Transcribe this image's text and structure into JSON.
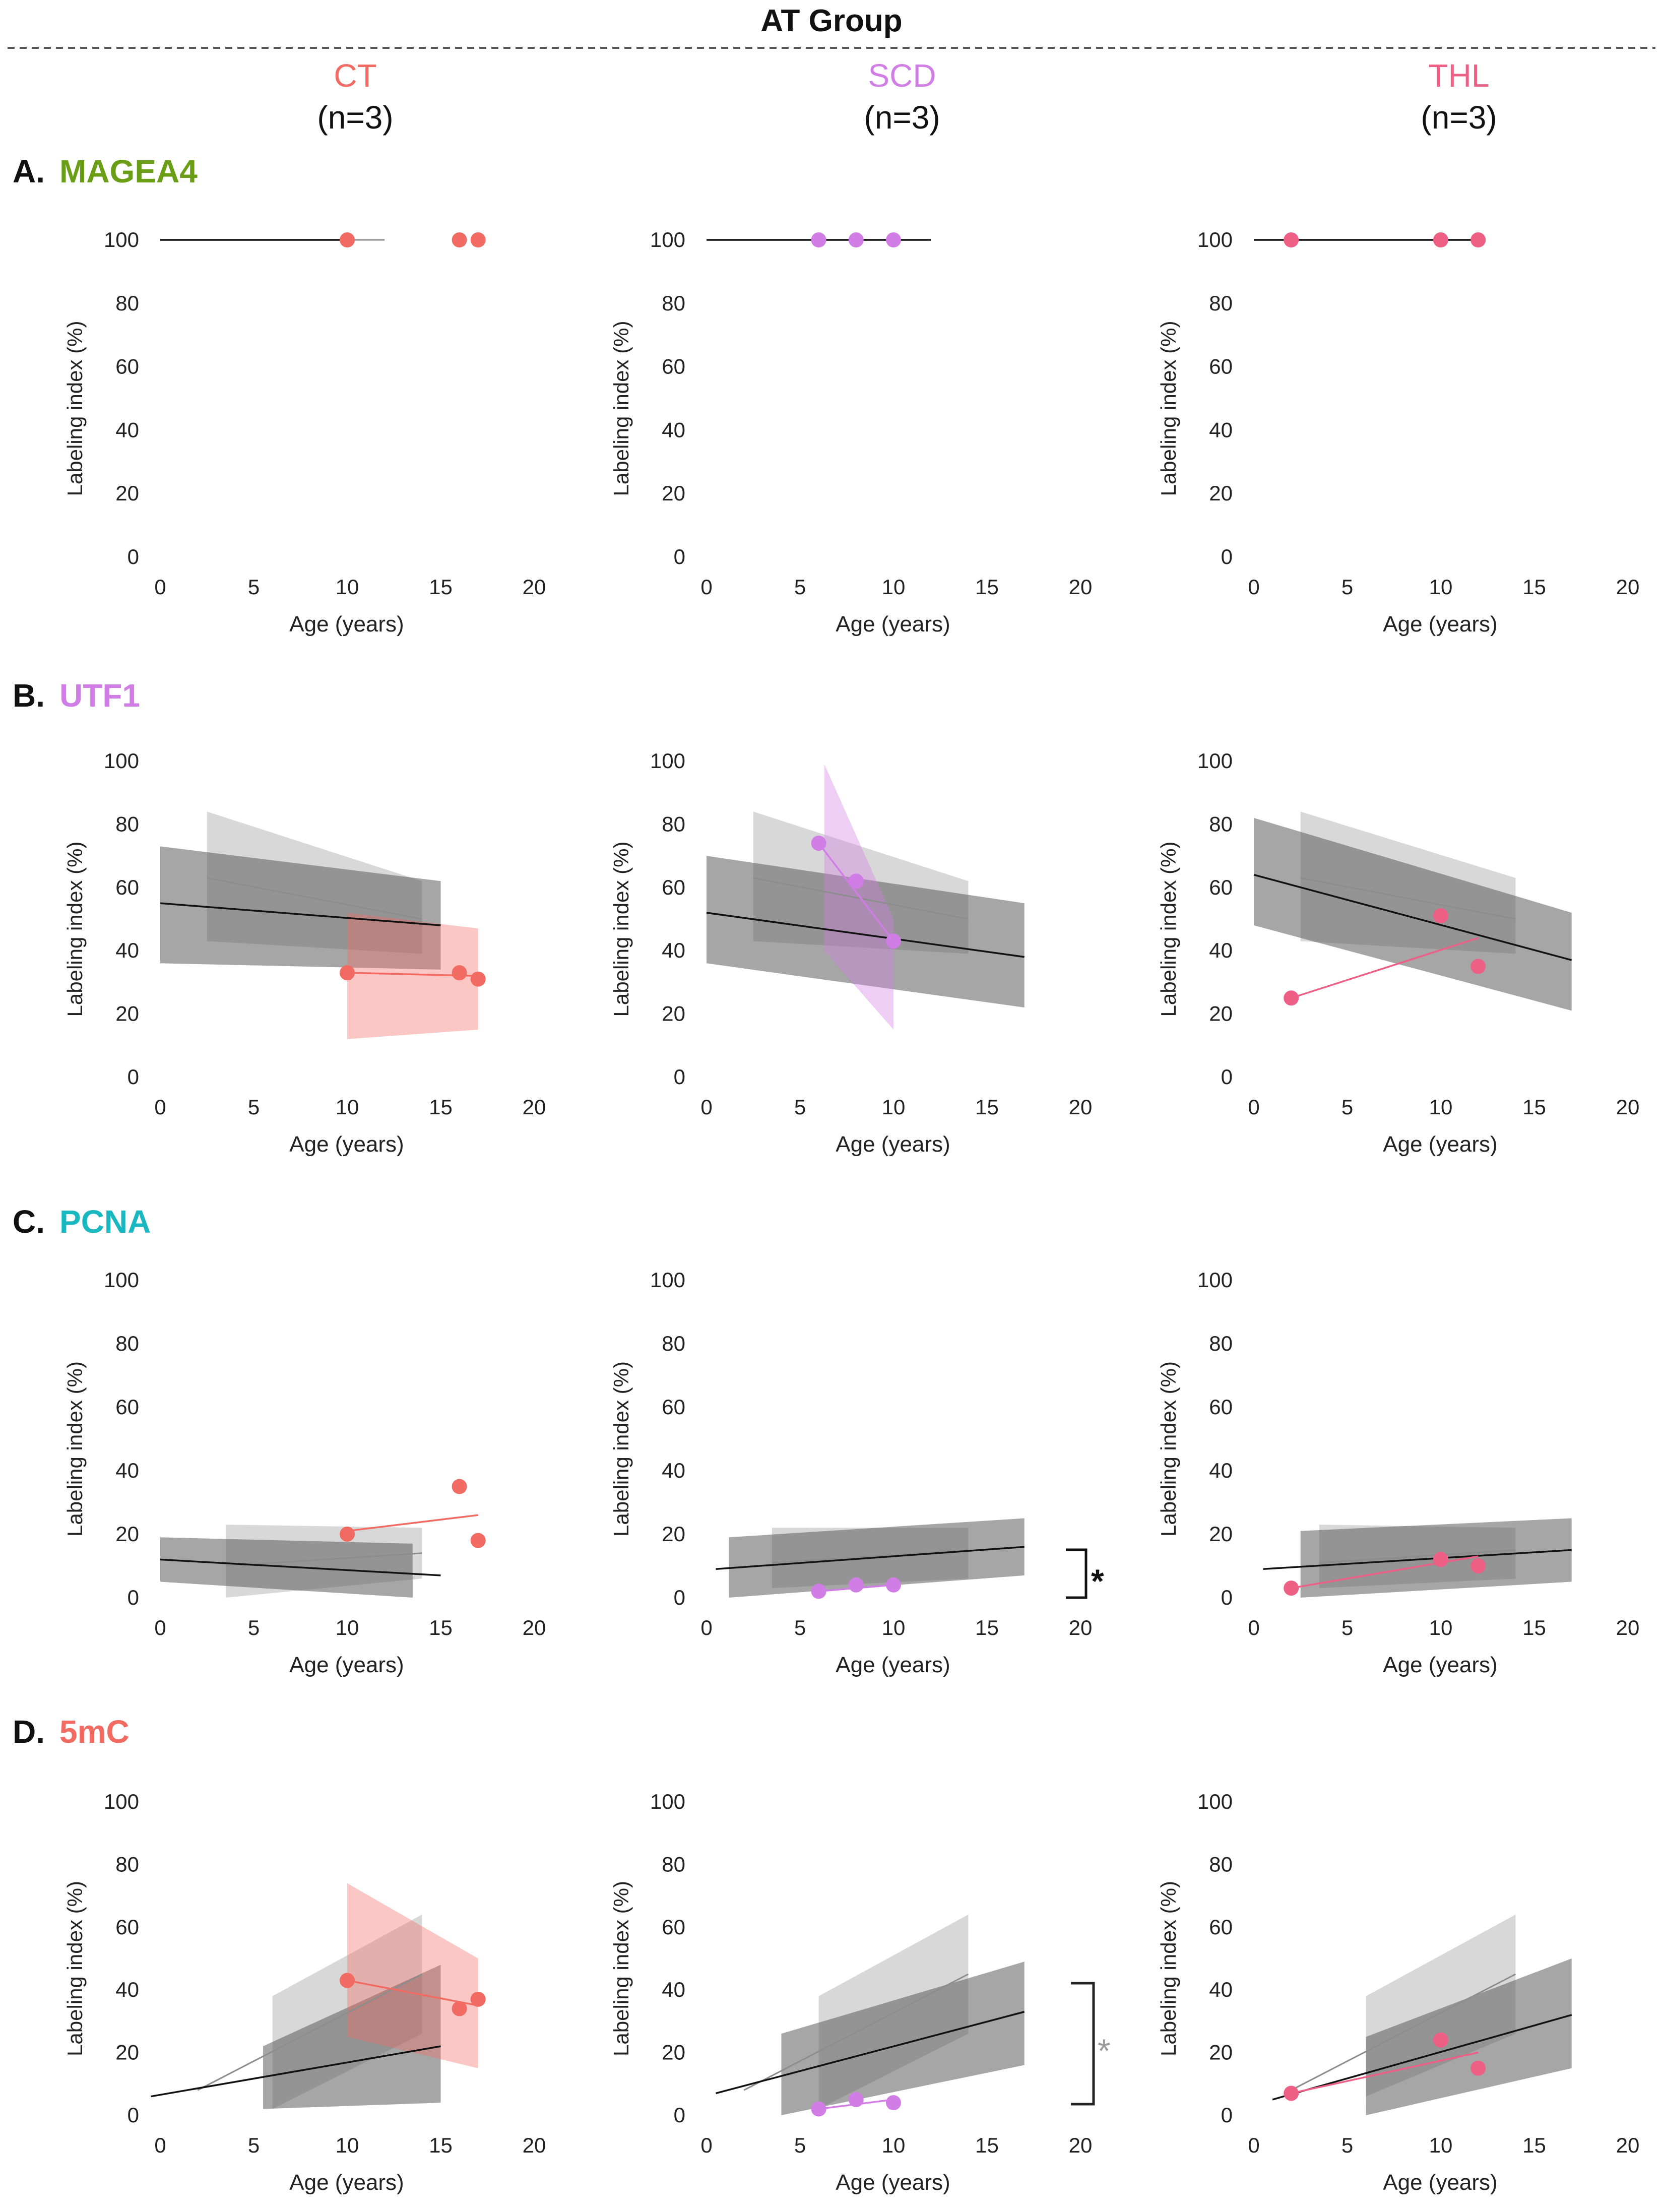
{
  "header": {
    "title": "AT Group",
    "columns": [
      {
        "name": "CT",
        "n": "(n=3)",
        "color": "#f26b63"
      },
      {
        "name": "SCD",
        "n": "(n=3)",
        "color": "#d17de6"
      },
      {
        "name": "THL",
        "n": "(n=3)",
        "color": "#ee5f86"
      }
    ]
  },
  "rows": [
    {
      "letter": "A.",
      "marker": "MAGEA4",
      "color": "#6a9e16"
    },
    {
      "letter": "B.",
      "marker": "UTF1",
      "color": "#d17de6"
    },
    {
      "letter": "C.",
      "marker": "PCNA",
      "color": "#19b8c0"
    },
    {
      "letter": "D.",
      "marker": "5mC",
      "color": "#f26b63"
    }
  ],
  "significance": {
    "pcna_scd": "*",
    "mc_scd": "*"
  },
  "chart_data": [
    {
      "type": "scatter",
      "title": "MAGEA4 – CT",
      "xlabel": "Age (years)",
      "ylabel": "Labeling index (%)",
      "xlim": [
        0,
        20
      ],
      "ylim": [
        0,
        100
      ],
      "xticks": [
        "0",
        "5",
        "10",
        "15",
        "20"
      ],
      "yticks": [
        "0",
        "20",
        "40",
        "60",
        "80",
        "100"
      ],
      "group_points": [
        [
          10,
          100
        ],
        [
          16,
          100
        ],
        [
          17,
          100
        ]
      ],
      "lines": [
        {
          "style": "light",
          "x": [
            0,
            12
          ],
          "y": [
            100,
            100
          ]
        },
        {
          "style": "dark",
          "x": [
            0,
            10
          ],
          "y": [
            100,
            100
          ]
        }
      ],
      "bands": []
    },
    {
      "type": "scatter",
      "title": "MAGEA4 – SCD",
      "xlabel": "Age (years)",
      "ylabel": "Labeling index (%)",
      "xlim": [
        0,
        20
      ],
      "ylim": [
        0,
        100
      ],
      "xticks": [
        "0",
        "5",
        "10",
        "15",
        "20"
      ],
      "yticks": [
        "0",
        "20",
        "40",
        "60",
        "80",
        "100"
      ],
      "group_points": [
        [
          6,
          100
        ],
        [
          8,
          100
        ],
        [
          10,
          100
        ]
      ],
      "lines": [
        {
          "style": "light",
          "x": [
            0,
            12
          ],
          "y": [
            100,
            100
          ]
        },
        {
          "style": "dark",
          "x": [
            0,
            12
          ],
          "y": [
            100,
            100
          ]
        }
      ],
      "bands": []
    },
    {
      "type": "scatter",
      "title": "MAGEA4 – THL",
      "xlabel": "Age (years)",
      "ylabel": "Labeling index (%)",
      "xlim": [
        0,
        20
      ],
      "ylim": [
        0,
        100
      ],
      "xticks": [
        "0",
        "5",
        "10",
        "15",
        "20"
      ],
      "yticks": [
        "0",
        "20",
        "40",
        "60",
        "80",
        "100"
      ],
      "group_points": [
        [
          2,
          100
        ],
        [
          10,
          100
        ],
        [
          12,
          100
        ]
      ],
      "lines": [
        {
          "style": "light",
          "x": [
            0,
            12
          ],
          "y": [
            100,
            100
          ]
        },
        {
          "style": "dark",
          "x": [
            0,
            12
          ],
          "y": [
            100,
            100
          ]
        }
      ],
      "bands": []
    },
    {
      "type": "scatter",
      "title": "UTF1 – CT",
      "xlabel": "Age (years)",
      "ylabel": "Labeling index (%)",
      "xlim": [
        0,
        20
      ],
      "ylim": [
        0,
        100
      ],
      "xticks": [
        "0",
        "5",
        "10",
        "15",
        "20"
      ],
      "yticks": [
        "0",
        "20",
        "40",
        "60",
        "80",
        "100"
      ],
      "group_points": [
        [
          10,
          33
        ],
        [
          16,
          33
        ],
        [
          17,
          31
        ]
      ],
      "lines": [
        {
          "style": "light",
          "x": [
            2.5,
            14
          ],
          "y": [
            63,
            50
          ]
        },
        {
          "style": "dark",
          "x": [
            0,
            15
          ],
          "y": [
            55,
            48
          ]
        },
        {
          "style": "group",
          "x": [
            10,
            17
          ],
          "y": [
            33,
            32
          ]
        }
      ],
      "bands": [
        {
          "style": "light",
          "x": [
            2.5,
            14
          ],
          "upper": [
            84,
            62
          ],
          "lower": [
            43,
            39
          ]
        },
        {
          "style": "dark",
          "x": [
            0,
            15
          ],
          "upper": [
            73,
            62
          ],
          "lower": [
            36,
            34
          ]
        },
        {
          "style": "group",
          "x": [
            10,
            17
          ],
          "upper": [
            52,
            47
          ],
          "lower": [
            12,
            15
          ]
        }
      ]
    },
    {
      "type": "scatter",
      "title": "UTF1 – SCD",
      "xlabel": "Age (years)",
      "ylabel": "Labeling index (%)",
      "xlim": [
        0,
        20
      ],
      "ylim": [
        0,
        100
      ],
      "xticks": [
        "0",
        "5",
        "10",
        "15",
        "20"
      ],
      "yticks": [
        "0",
        "20",
        "40",
        "60",
        "80",
        "100"
      ],
      "group_points": [
        [
          6,
          74
        ],
        [
          8,
          62
        ],
        [
          10,
          43
        ]
      ],
      "lines": [
        {
          "style": "light",
          "x": [
            2.5,
            14
          ],
          "y": [
            63,
            50
          ]
        },
        {
          "style": "dark",
          "x": [
            0,
            17
          ],
          "y": [
            52,
            38
          ]
        },
        {
          "style": "group",
          "x": [
            6,
            10
          ],
          "y": [
            74,
            43
          ]
        }
      ],
      "bands": [
        {
          "style": "light",
          "x": [
            2.5,
            14
          ],
          "upper": [
            84,
            62
          ],
          "lower": [
            43,
            39
          ]
        },
        {
          "style": "dark",
          "x": [
            0,
            17
          ],
          "upper": [
            70,
            55
          ],
          "lower": [
            36,
            22
          ]
        },
        {
          "style": "group",
          "x": [
            6.3,
            10
          ],
          "upper": [
            99,
            50
          ],
          "lower": [
            40,
            15
          ]
        }
      ]
    },
    {
      "type": "scatter",
      "title": "UTF1 – THL",
      "xlabel": "Age (years)",
      "ylabel": "Labeling index (%)",
      "xlim": [
        0,
        20
      ],
      "ylim": [
        0,
        100
      ],
      "xticks": [
        "0",
        "5",
        "10",
        "15",
        "20"
      ],
      "yticks": [
        "0",
        "20",
        "40",
        "60",
        "80",
        "100"
      ],
      "group_points": [
        [
          2,
          25
        ],
        [
          10,
          51
        ],
        [
          12,
          35
        ]
      ],
      "lines": [
        {
          "style": "light",
          "x": [
            2.5,
            14
          ],
          "y": [
            63,
            50
          ]
        },
        {
          "style": "dark",
          "x": [
            0,
            17
          ],
          "y": [
            64,
            37
          ]
        },
        {
          "style": "group",
          "x": [
            2,
            12
          ],
          "y": [
            25,
            44
          ]
        }
      ],
      "bands": [
        {
          "style": "light",
          "x": [
            2.5,
            14
          ],
          "upper": [
            84,
            63
          ],
          "lower": [
            43,
            39
          ]
        },
        {
          "style": "dark",
          "x": [
            0,
            17
          ],
          "upper": [
            82,
            52
          ],
          "lower": [
            48,
            21
          ]
        }
      ]
    },
    {
      "type": "scatter",
      "title": "PCNA – CT",
      "xlabel": "Age (years)",
      "ylabel": "Labeling index (%)",
      "xlim": [
        0,
        20
      ],
      "ylim": [
        0,
        100
      ],
      "xticks": [
        "0",
        "5",
        "10",
        "15",
        "20"
      ],
      "yticks": [
        "0",
        "20",
        "40",
        "60",
        "80",
        "100"
      ],
      "group_points": [
        [
          10,
          20
        ],
        [
          16,
          35
        ],
        [
          17,
          18
        ]
      ],
      "lines": [
        {
          "style": "light",
          "x": [
            3.5,
            14
          ],
          "y": [
            10,
            14
          ]
        },
        {
          "style": "dark",
          "x": [
            0,
            15
          ],
          "y": [
            12,
            7
          ]
        },
        {
          "style": "group",
          "x": [
            10,
            17
          ],
          "y": [
            21,
            26
          ]
        }
      ],
      "bands": [
        {
          "style": "light",
          "x": [
            3.5,
            14
          ],
          "upper": [
            23,
            22
          ],
          "lower": [
            0,
            6
          ]
        },
        {
          "style": "dark",
          "x": [
            0,
            13.5
          ],
          "upper": [
            19,
            17
          ],
          "lower": [
            5,
            0
          ]
        }
      ]
    },
    {
      "type": "scatter",
      "title": "PCNA – SCD",
      "xlabel": "Age (years)",
      "ylabel": "Labeling index (%)",
      "xlim": [
        0,
        20
      ],
      "ylim": [
        0,
        100
      ],
      "xticks": [
        "0",
        "5",
        "10",
        "15",
        "20"
      ],
      "yticks": [
        "0",
        "20",
        "40",
        "60",
        "80",
        "100"
      ],
      "group_points": [
        [
          6,
          2
        ],
        [
          8,
          4
        ],
        [
          10,
          4
        ]
      ],
      "lines": [
        {
          "style": "light",
          "x": [
            3.5,
            14
          ],
          "y": [
            11,
            15
          ]
        },
        {
          "style": "dark",
          "x": [
            0.5,
            17
          ],
          "y": [
            9,
            16
          ]
        },
        {
          "style": "group",
          "x": [
            6,
            10
          ],
          "y": [
            2,
            4
          ]
        }
      ],
      "bands": [
        {
          "style": "light",
          "x": [
            3.5,
            14
          ],
          "upper": [
            22,
            22
          ],
          "lower": [
            3,
            6
          ]
        },
        {
          "style": "dark",
          "x": [
            1.2,
            17
          ],
          "upper": [
            19,
            25
          ],
          "lower": [
            0,
            7
          ]
        }
      ]
    },
    {
      "type": "scatter",
      "title": "PCNA – THL",
      "xlabel": "Age (years)",
      "ylabel": "Labeling index (%)",
      "xlim": [
        0,
        20
      ],
      "ylim": [
        0,
        100
      ],
      "xticks": [
        "0",
        "5",
        "10",
        "15",
        "20"
      ],
      "yticks": [
        "0",
        "20",
        "40",
        "60",
        "80",
        "100"
      ],
      "group_points": [
        [
          2,
          3
        ],
        [
          10,
          12
        ],
        [
          12,
          10
        ]
      ],
      "lines": [
        {
          "style": "light",
          "x": [
            3.5,
            14
          ],
          "y": [
            11,
            15
          ]
        },
        {
          "style": "dark",
          "x": [
            0.5,
            17
          ],
          "y": [
            9,
            15
          ]
        },
        {
          "style": "group",
          "x": [
            2,
            12
          ],
          "y": [
            3,
            13
          ]
        }
      ],
      "bands": [
        {
          "style": "light",
          "x": [
            3.5,
            14
          ],
          "upper": [
            23,
            22
          ],
          "lower": [
            3,
            6
          ]
        },
        {
          "style": "dark",
          "x": [
            2.5,
            17
          ],
          "upper": [
            21,
            25
          ],
          "lower": [
            0,
            5
          ]
        }
      ]
    },
    {
      "type": "scatter",
      "title": "5mC – CT",
      "xlabel": "Age (years)",
      "ylabel": "Labeling index (%)",
      "xlim": [
        0,
        20
      ],
      "ylim": [
        0,
        100
      ],
      "xticks": [
        "0",
        "5",
        "10",
        "15",
        "20"
      ],
      "yticks": [
        "0",
        "20",
        "40",
        "60",
        "80",
        "100"
      ],
      "group_points": [
        [
          10,
          43
        ],
        [
          16,
          34
        ],
        [
          17,
          37
        ]
      ],
      "lines": [
        {
          "style": "light",
          "x": [
            2,
            14
          ],
          "y": [
            8,
            45
          ]
        },
        {
          "style": "dark",
          "x": [
            -0.5,
            15
          ],
          "y": [
            6,
            22
          ]
        },
        {
          "style": "group",
          "x": [
            10,
            17
          ],
          "y": [
            43,
            35
          ]
        }
      ],
      "bands": [
        {
          "style": "light",
          "x": [
            6,
            14
          ],
          "upper": [
            38,
            64
          ],
          "lower": [
            2,
            26
          ]
        },
        {
          "style": "dark",
          "x": [
            5.5,
            15
          ],
          "upper": [
            22,
            48
          ],
          "lower": [
            2,
            4
          ]
        },
        {
          "style": "group",
          "x": [
            10,
            17
          ],
          "upper": [
            74,
            50
          ],
          "lower": [
            25,
            15
          ]
        }
      ]
    },
    {
      "type": "scatter",
      "title": "5mC – SCD",
      "xlabel": "Age (years)",
      "ylabel": "Labeling index (%)",
      "xlim": [
        0,
        20
      ],
      "ylim": [
        0,
        100
      ],
      "xticks": [
        "0",
        "5",
        "10",
        "15",
        "20"
      ],
      "yticks": [
        "0",
        "20",
        "40",
        "60",
        "80",
        "100"
      ],
      "group_points": [
        [
          6,
          2
        ],
        [
          8,
          5
        ],
        [
          10,
          4
        ]
      ],
      "lines": [
        {
          "style": "light",
          "x": [
            2,
            14
          ],
          "y": [
            8,
            45
          ]
        },
        {
          "style": "dark",
          "x": [
            0.5,
            17
          ],
          "y": [
            7,
            33
          ]
        },
        {
          "style": "group",
          "x": [
            6,
            10
          ],
          "y": [
            2,
            5
          ]
        }
      ],
      "bands": [
        {
          "style": "light",
          "x": [
            6,
            14
          ],
          "upper": [
            38,
            64
          ],
          "lower": [
            2,
            26
          ]
        },
        {
          "style": "dark",
          "x": [
            4,
            17
          ],
          "upper": [
            26,
            49
          ],
          "lower": [
            0,
            16
          ]
        }
      ]
    },
    {
      "type": "scatter",
      "title": "5mC – THL",
      "xlabel": "Age (years)",
      "ylabel": "Labeling index (%)",
      "xlim": [
        0,
        20
      ],
      "ylim": [
        0,
        100
      ],
      "xticks": [
        "0",
        "5",
        "10",
        "15",
        "20"
      ],
      "yticks": [
        "0",
        "20",
        "40",
        "60",
        "80",
        "100"
      ],
      "group_points": [
        [
          2,
          7
        ],
        [
          10,
          24
        ],
        [
          12,
          15
        ]
      ],
      "lines": [
        {
          "style": "light",
          "x": [
            2,
            14
          ],
          "y": [
            8,
            45
          ]
        },
        {
          "style": "dark",
          "x": [
            1,
            17
          ],
          "y": [
            5,
            32
          ]
        },
        {
          "style": "group",
          "x": [
            2,
            12
          ],
          "y": [
            7,
            20
          ]
        }
      ],
      "bands": [
        {
          "style": "light",
          "x": [
            6,
            14
          ],
          "upper": [
            38,
            64
          ],
          "lower": [
            6,
            26
          ]
        },
        {
          "style": "dark",
          "x": [
            6,
            17
          ],
          "upper": [
            25,
            50
          ],
          "lower": [
            0,
            15
          ]
        }
      ]
    }
  ]
}
